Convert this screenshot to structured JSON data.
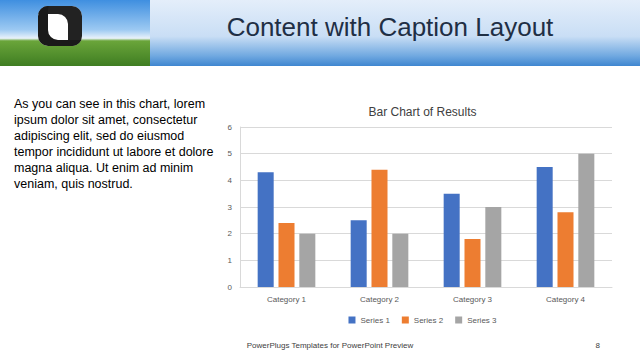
{
  "slide": {
    "title": "Content with Caption Layout",
    "caption": "As you can see in this chart, lorem ipsum dolor sit amet, consectetur adipiscing elit, sed do eiusmod tempor incididunt ut labore et dolore magna aliqua. Ut enim ad minim veniam, quis nostrud.",
    "footer": "PowerPlugs Templates for PowerPoint Preview",
    "page_number": 8
  },
  "chart_data": {
    "type": "bar",
    "title": "Bar Chart of Results",
    "categories": [
      "Category 1",
      "Category 2",
      "Category 3",
      "Category 4"
    ],
    "series": [
      {
        "name": "Series 1",
        "color": "#4472c4",
        "values": [
          4.3,
          2.5,
          3.5,
          4.5
        ]
      },
      {
        "name": "Series 2",
        "color": "#ed7d31",
        "values": [
          2.4,
          4.4,
          1.8,
          2.8
        ]
      },
      {
        "name": "Series 3",
        "color": "#a5a5a5",
        "values": [
          2,
          2,
          3,
          5
        ]
      }
    ],
    "ylim": [
      0,
      6
    ],
    "yticks": [
      0,
      1,
      2,
      3,
      4,
      5,
      6
    ],
    "grid": true,
    "legend": "bottom"
  }
}
